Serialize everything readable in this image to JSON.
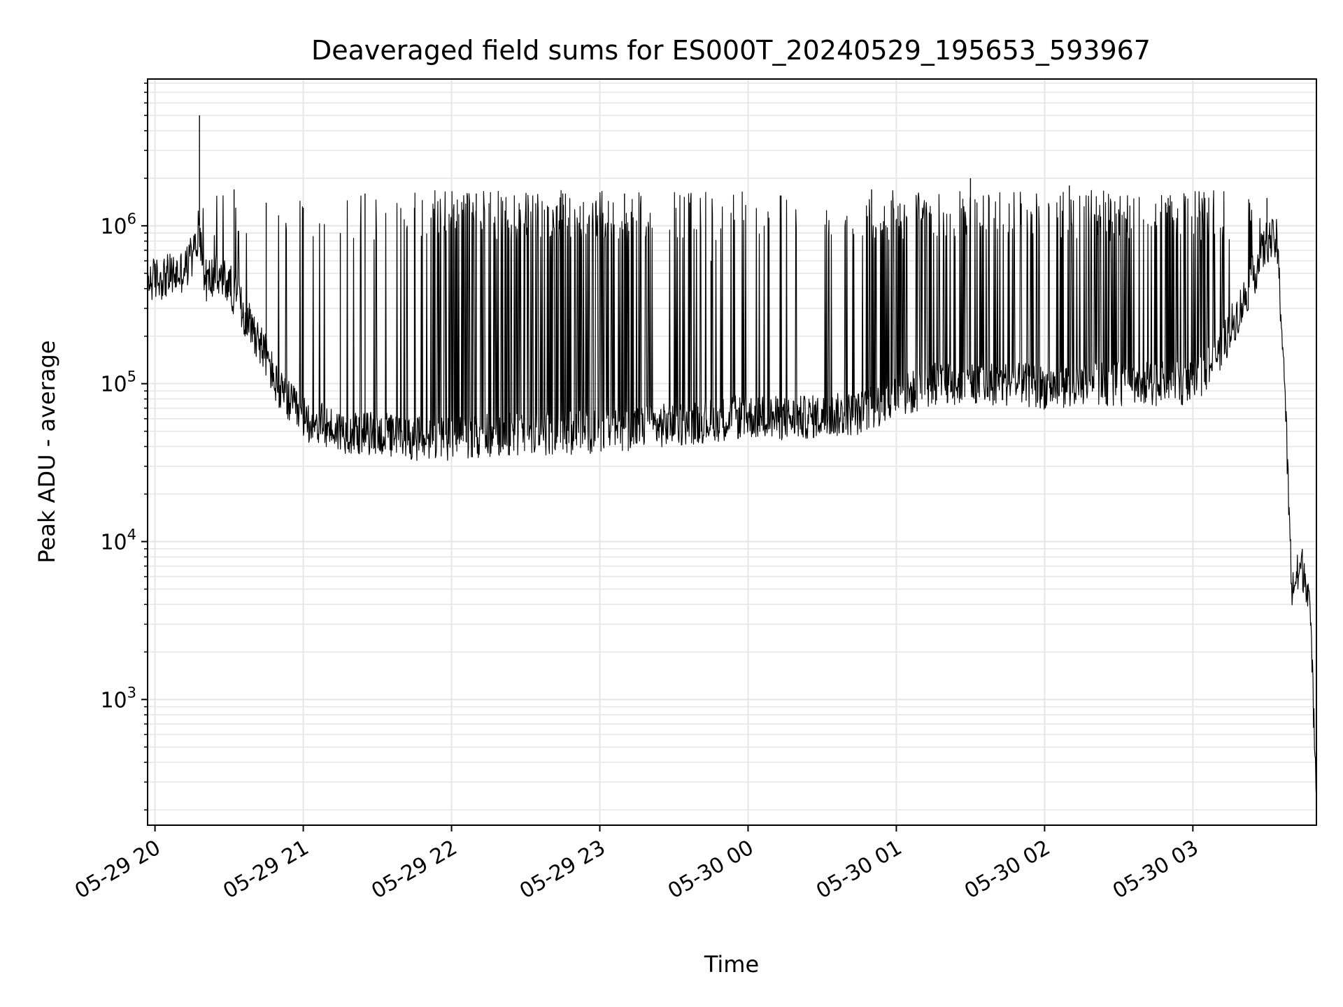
{
  "chart_data": {
    "type": "line",
    "title": "Deaveraged field sums for ES000T_20240529_195653_593967",
    "xlabel": "Time",
    "ylabel": "Peak ADU - average",
    "yscale": "log",
    "grid": true,
    "line_color": "#000000",
    "grid_color": "#e6e6e6",
    "x_tick_labels": [
      "05-29 20",
      "05-29 21",
      "05-29 22",
      "05-29 23",
      "05-30 00",
      "05-30 01",
      "05-30 02",
      "05-30 03"
    ],
    "x_ticks": [
      "2024-05-29 20:00",
      "2024-05-29 21:00",
      "2024-05-29 22:00",
      "2024-05-29 23:00",
      "2024-05-30 00:00",
      "2024-05-30 01:00",
      "2024-05-30 02:00",
      "2024-05-30 03:00"
    ],
    "y_tick_labels": [
      {
        "base": "10",
        "exp": "3",
        "value": 1000
      },
      {
        "base": "10",
        "exp": "4",
        "value": 10000
      },
      {
        "base": "10",
        "exp": "5",
        "value": 100000
      },
      {
        "base": "10",
        "exp": "6",
        "value": 1000000
      }
    ],
    "xlim": [
      "2024-05-29 19:57",
      "2024-05-30 03:50"
    ],
    "ylim": [
      160,
      8500000
    ],
    "envelope": {
      "x": [
        "2024-05-29 19:57",
        "2024-05-29 20:05",
        "2024-05-29 20:10",
        "2024-05-29 20:15",
        "2024-05-29 20:18",
        "2024-05-29 20:20",
        "2024-05-29 20:25",
        "2024-05-29 20:30",
        "2024-05-29 20:35",
        "2024-05-29 20:40",
        "2024-05-29 20:45",
        "2024-05-29 20:50",
        "2024-05-29 21:00",
        "2024-05-29 21:15",
        "2024-05-29 21:30",
        "2024-05-29 21:45",
        "2024-05-29 22:00",
        "2024-05-29 22:30",
        "2024-05-29 23:00",
        "2024-05-29 23:30",
        "2024-05-30 00:00",
        "2024-05-30 00:15",
        "2024-05-30 00:30",
        "2024-05-30 00:45",
        "2024-05-30 01:00",
        "2024-05-30 01:15",
        "2024-05-30 01:30",
        "2024-05-30 01:45",
        "2024-05-30 02:00",
        "2024-05-30 02:15",
        "2024-05-30 02:30",
        "2024-05-30 02:45",
        "2024-05-30 03:00",
        "2024-05-30 03:10",
        "2024-05-30 03:20",
        "2024-05-30 03:30",
        "2024-05-30 03:34",
        "2024-05-30 03:37",
        "2024-05-30 03:40",
        "2024-05-30 03:44",
        "2024-05-30 03:47",
        "2024-05-30 03:50"
      ],
      "y": [
        450000,
        480000,
        500000,
        600000,
        1000000,
        450000,
        480000,
        430000,
        300000,
        220000,
        150000,
        90000,
        60000,
        50000,
        48000,
        45000,
        45000,
        48000,
        50000,
        55000,
        62000,
        60000,
        62000,
        65000,
        80000,
        100000,
        100000,
        100000,
        95000,
        100000,
        100000,
        100000,
        100000,
        150000,
        320000,
        800000,
        800000,
        120000,
        5000,
        7000,
        5000,
        300
      ]
    },
    "spikes": [
      {
        "x": "2024-05-29 20:18",
        "y": 5000000
      },
      {
        "x": "2024-05-29 20:32",
        "y": 1700000
      },
      {
        "x": "2024-05-29 20:45",
        "y": 1400000
      },
      {
        "x": "2024-05-29 21:00",
        "y": 1300000
      },
      {
        "x": "2024-05-29 21:15",
        "y": 900000
      },
      {
        "x": "2024-05-29 21:25",
        "y": 1600000
      },
      {
        "x": "2024-05-29 21:45",
        "y": 1300000
      },
      {
        "x": "2024-05-29 22:10",
        "y": 1600000
      },
      {
        "x": "2024-05-29 22:45",
        "y": 1600000
      },
      {
        "x": "2024-05-29 23:10",
        "y": 1600000
      },
      {
        "x": "2024-05-29 23:45",
        "y": 600000
      },
      {
        "x": "2024-05-30 00:50",
        "y": 1700000
      },
      {
        "x": "2024-05-30 01:30",
        "y": 2000000
      },
      {
        "x": "2024-05-30 02:10",
        "y": 1800000
      },
      {
        "x": "2024-05-30 02:50",
        "y": 1500000
      },
      {
        "x": "2024-05-30 03:30",
        "y": 1500000
      }
    ]
  }
}
